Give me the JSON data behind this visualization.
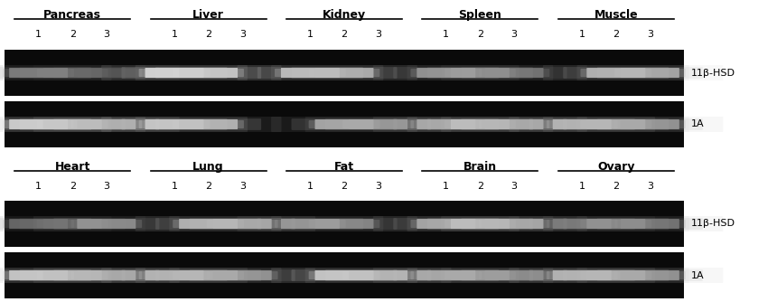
{
  "fig_width": 8.6,
  "fig_height": 3.34,
  "bg_color": "#ffffff",
  "gel_bg": "#0a0a0a",
  "row1_organs": [
    "Pancreas",
    "Liver",
    "Kidney",
    "Spleen",
    "Muscle"
  ],
  "row2_organs": [
    "Heart",
    "Lung",
    "Fat",
    "Brain",
    "Ovary"
  ],
  "lane_labels": [
    "1",
    "2",
    "3"
  ],
  "label_11beta": "11β-HSD",
  "label_1A": "1A",
  "row1_band_data_11beta": [
    [
      0.65,
      0.55,
      0.45
    ],
    [
      0.92,
      0.88,
      0.0
    ],
    [
      0.85,
      0.8,
      0.0
    ],
    [
      0.72,
      0.68,
      0.62
    ],
    [
      0.0,
      0.82,
      0.78
    ]
  ],
  "row1_band_data_1A": [
    [
      0.9,
      0.85,
      0.8
    ],
    [
      0.88,
      0.82,
      0.0
    ],
    [
      0.0,
      0.78,
      0.72
    ],
    [
      0.78,
      0.82,
      0.78
    ],
    [
      0.82,
      0.78,
      0.72
    ]
  ],
  "row2_band_data_11beta": [
    [
      0.58,
      0.5,
      0.7
    ],
    [
      0.0,
      0.82,
      0.78
    ],
    [
      0.72,
      0.68,
      0.0
    ],
    [
      0.78,
      0.82,
      0.78
    ],
    [
      0.62,
      0.66,
      0.62
    ]
  ],
  "row2_band_data_1A": [
    [
      0.88,
      0.82,
      0.78
    ],
    [
      0.82,
      0.78,
      0.72
    ],
    [
      0.0,
      0.88,
      0.82
    ],
    [
      0.78,
      0.72,
      0.68
    ],
    [
      0.82,
      0.78,
      0.72
    ]
  ],
  "title_fontsize": 9,
  "lane_fontsize": 8,
  "label_fontsize": 8
}
